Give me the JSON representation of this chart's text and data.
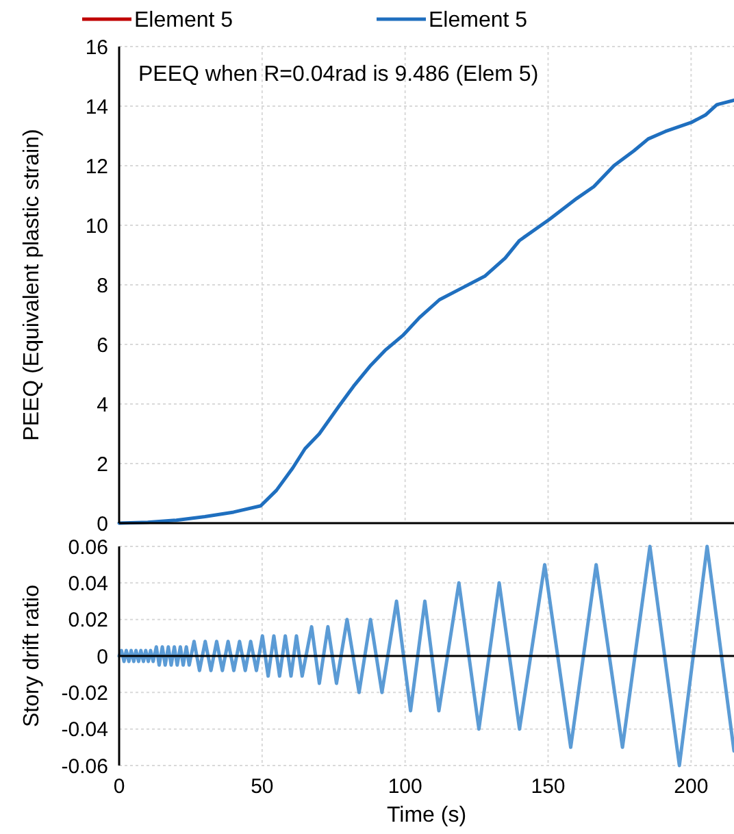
{
  "chart_data": [
    {
      "type": "line",
      "ylabel": "PEEQ (Equivalent plastic strain)",
      "xlim": [
        0,
        215
      ],
      "xticks": [
        0,
        50,
        100,
        150,
        200
      ],
      "ylim": [
        0,
        16
      ],
      "yticks": [
        0,
        2,
        4,
        6,
        8,
        10,
        12,
        14,
        16
      ],
      "grid": true,
      "legend": "top",
      "tick_labels": "y",
      "line_style": "solid",
      "annotations": [
        "PEEQ when R=0.04rad is 9.486 (Elem 5)"
      ],
      "series": [
        {
          "name": "Element 5",
          "color": "#c00000"
        },
        {
          "name": "Element 5",
          "color": "#1f6fbf",
          "x": [
            0,
            10,
            20,
            30,
            40,
            49.5,
            55,
            60.7,
            65,
            70,
            76.8,
            82,
            88,
            93,
            99.2,
            105,
            112,
            120,
            128,
            135,
            140,
            150.5,
            160,
            166,
            173,
            180,
            185,
            191,
            200,
            205,
            209,
            215
          ],
          "values": [
            0,
            0.03,
            0.1,
            0.22,
            0.37,
            0.58,
            1.1,
            1.85,
            2.5,
            3.0,
            3.92,
            4.6,
            5.3,
            5.8,
            6.3,
            6.9,
            7.5,
            7.9,
            8.3,
            8.9,
            9.49,
            10.2,
            10.9,
            11.3,
            12.0,
            12.5,
            12.9,
            13.15,
            13.45,
            13.7,
            14.05,
            14.2
          ]
        }
      ]
    },
    {
      "type": "line",
      "xlabel": "Time (s)",
      "ylabel": "Story drift ratio",
      "xlim": [
        0,
        215
      ],
      "xticks": [
        0,
        50,
        100,
        150,
        200
      ],
      "ylim": [
        -0.06,
        0.06
      ],
      "yticks": [
        -0.06,
        -0.04,
        -0.02,
        0,
        0.02,
        0.04,
        0.06
      ],
      "grid": true,
      "line_style": "solid",
      "series": [
        {
          "color": "#5b9bd5",
          "x": [
            0,
            0.8,
            1.7,
            2.5,
            3.4,
            4.2,
            5.1,
            5.9,
            6.8,
            7.6,
            8.5,
            9.3,
            10.2,
            11.0,
            11.9,
            13.0,
            14.0,
            15.1,
            16.1,
            17.2,
            18.2,
            19.3,
            20.3,
            21.4,
            22.4,
            23.5,
            24.5,
            26.2,
            28.1,
            30.1,
            32.1,
            34.1,
            36.1,
            38.1,
            40.1,
            42.1,
            44.1,
            46.0,
            48.0,
            50.1,
            52.1,
            54.1,
            56.1,
            58.1,
            60.1,
            62.0,
            64.0,
            67.3,
            70.0,
            73.0,
            76.0,
            79.7,
            83.9,
            87.9,
            91.9,
            97.0,
            101.9,
            106.9,
            111.8,
            118.8,
            125.8,
            132.9,
            140.0,
            148.8,
            157.9,
            166.8,
            176.0,
            185.6,
            195.9,
            205.6,
            215
          ],
          "values": [
            0,
            0.003,
            -0.003,
            0.003,
            -0.003,
            0.003,
            -0.003,
            0.003,
            -0.003,
            0.003,
            -0.003,
            0.003,
            -0.003,
            0.003,
            -0.003,
            0.005,
            -0.005,
            0.005,
            -0.005,
            0.005,
            -0.005,
            0.005,
            -0.005,
            0.005,
            -0.005,
            0.005,
            -0.005,
            0.008,
            -0.008,
            0.008,
            -0.008,
            0.008,
            -0.008,
            0.008,
            -0.008,
            0.008,
            -0.008,
            0.008,
            -0.008,
            0.011,
            -0.011,
            0.011,
            -0.011,
            0.011,
            -0.011,
            0.011,
            -0.011,
            0.016,
            -0.015,
            0.016,
            -0.015,
            0.02,
            -0.02,
            0.02,
            -0.02,
            0.03,
            -0.03,
            0.03,
            -0.03,
            0.04,
            -0.04,
            0.04,
            -0.04,
            0.05,
            -0.05,
            0.05,
            -0.05,
            0.06,
            -0.06,
            0.06,
            -0.052
          ]
        }
      ]
    }
  ]
}
